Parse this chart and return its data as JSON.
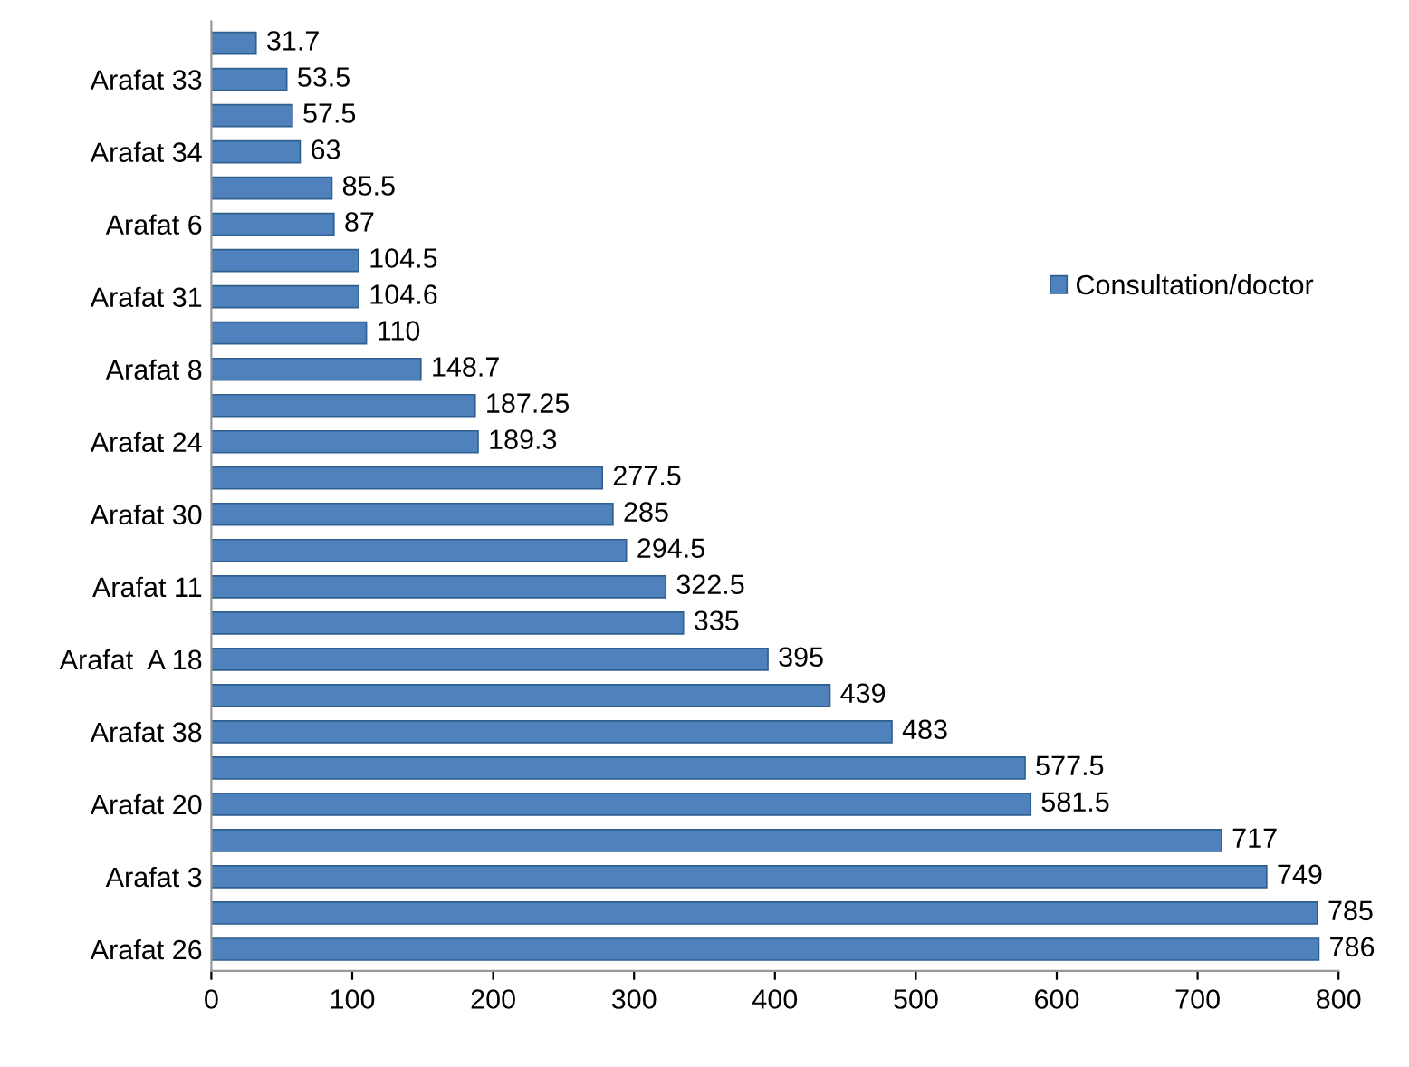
{
  "chart_data": {
    "type": "bar",
    "orientation": "horizontal",
    "categories": [
      null,
      "Arafat 33",
      null,
      "Arafat 34",
      null,
      "Arafat 6",
      null,
      "Arafat 31",
      null,
      "Arafat 8",
      null,
      "Arafat 24",
      null,
      "Arafat 30",
      null,
      "Arafat 11",
      null,
      "Arafat  A 18",
      null,
      "Arafat 38",
      null,
      "Arafat 20",
      null,
      "Arafat 3",
      null,
      "Arafat 26"
    ],
    "series": [
      {
        "name": "Consultation/doctor",
        "color": "#4f81bd",
        "values": [
          31.7,
          53.5,
          57.5,
          63,
          85.5,
          87,
          104.5,
          104.6,
          110,
          148.7,
          187.25,
          189.3,
          277.5,
          285,
          294.5,
          322.5,
          335,
          395,
          439,
          483,
          577.5,
          581.5,
          717,
          749,
          785,
          786
        ]
      }
    ],
    "xlim": [
      0,
      800
    ],
    "xticks": [
      0,
      100,
      200,
      300,
      400,
      500,
      600,
      700,
      800
    ],
    "data_labels": true,
    "legend": "right",
    "grid": false
  }
}
